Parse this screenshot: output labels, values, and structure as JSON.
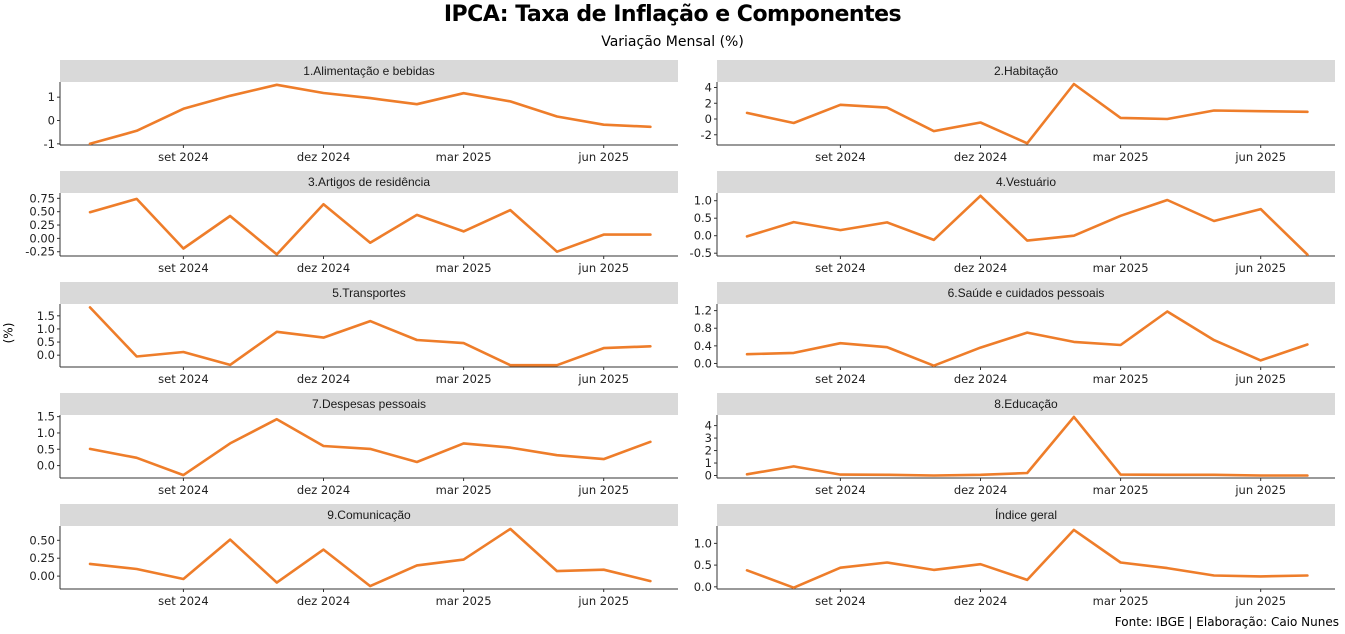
{
  "header": {
    "title": "IPCA: Taxa de Inflação e Componentes",
    "subtitle": "Variação Mensal (%)"
  },
  "ylabel": "(%)",
  "caption": "Fonte: IBGE | Elaboração: Caio Nunes",
  "colors": {
    "line": "#ee7d2a",
    "strip": "#d9d9d9",
    "axis": "#333333"
  },
  "chart_data": {
    "type": "line",
    "x": [
      "jul 2024",
      "ago 2024",
      "set 2024",
      "out 2024",
      "nov 2024",
      "dez 2024",
      "jan 2025",
      "fev 2025",
      "mar 2025",
      "abr 2025",
      "mai 2025",
      "jun 2025",
      "jul 2025"
    ],
    "x_ticks": [
      "set 2024",
      "dez 2024",
      "mar 2025",
      "jun 2025"
    ],
    "panels": [
      {
        "name": "1.Alimentação e bebidas",
        "yticks": [
          "-1",
          "0",
          "1"
        ],
        "ytick_values": [
          -1,
          0,
          1
        ],
        "ylim": [
          -1.05,
          1.65
        ],
        "values": [
          -1.0,
          -0.44,
          0.5,
          1.06,
          1.53,
          1.18,
          0.96,
          0.7,
          1.17,
          0.82,
          0.17,
          -0.18,
          -0.27
        ]
      },
      {
        "name": "2.Habitação",
        "yticks": [
          "-2",
          "0",
          "2",
          "4"
        ],
        "ytick_values": [
          -2,
          0,
          2,
          4
        ],
        "ylim": [
          -3.3,
          4.7
        ],
        "values": [
          0.77,
          -0.51,
          1.8,
          1.45,
          -1.53,
          -0.44,
          -3.08,
          4.44,
          0.14,
          0.0,
          1.08,
          0.99,
          0.91
        ]
      },
      {
        "name": "3.Artigos de residência",
        "yticks": [
          "-0.25",
          "0.00",
          "0.25",
          "0.50",
          "0.75"
        ],
        "ytick_values": [
          -0.25,
          0,
          0.25,
          0.5,
          0.75
        ],
        "ylim": [
          -0.33,
          0.85
        ],
        "values": [
          0.49,
          0.74,
          -0.19,
          0.42,
          -0.3,
          0.64,
          -0.08,
          0.44,
          0.13,
          0.53,
          -0.25,
          0.07,
          0.07
        ]
      },
      {
        "name": "4.Vestuário",
        "yticks": [
          "-0.5",
          "0.0",
          "0.5",
          "1.0"
        ],
        "ytick_values": [
          -0.5,
          0,
          0.5,
          1.0
        ],
        "ylim": [
          -0.58,
          1.22
        ],
        "values": [
          -0.02,
          0.39,
          0.16,
          0.38,
          -0.12,
          1.14,
          -0.14,
          0.0,
          0.57,
          1.02,
          0.42,
          0.76,
          -0.54
        ]
      },
      {
        "name": "5.Transportes",
        "yticks": [
          "0.0",
          "0.5",
          "1.0",
          "1.5"
        ],
        "ytick_values": [
          0,
          0.5,
          1.0,
          1.5
        ],
        "ylim": [
          -0.45,
          1.95
        ],
        "values": [
          1.82,
          -0.05,
          0.12,
          -0.37,
          0.89,
          0.67,
          1.3,
          0.58,
          0.46,
          -0.38,
          -0.38,
          0.27,
          0.34
        ]
      },
      {
        "name": "6.Saúde e cuidados pessoais",
        "yticks": [
          "0.0",
          "0.4",
          "0.8",
          "1.2"
        ],
        "ytick_values": [
          0,
          0.4,
          0.8,
          1.2
        ],
        "ylim": [
          -0.08,
          1.35
        ],
        "values": [
          0.21,
          0.24,
          0.46,
          0.37,
          -0.05,
          0.36,
          0.7,
          0.49,
          0.42,
          1.18,
          0.53,
          0.07,
          0.43
        ]
      },
      {
        "name": "7.Despesas pessoais",
        "yticks": [
          "0.0",
          "0.5",
          "1.0",
          "1.5"
        ],
        "ytick_values": [
          0,
          0.5,
          1.0,
          1.5
        ],
        "ylim": [
          -0.38,
          1.55
        ],
        "values": [
          0.51,
          0.24,
          -0.29,
          0.68,
          1.42,
          0.6,
          0.51,
          0.11,
          0.68,
          0.55,
          0.32,
          0.2,
          0.73
        ]
      },
      {
        "name": "8.Educação",
        "yticks": [
          "0",
          "1",
          "2",
          "3",
          "4"
        ],
        "ytick_values": [
          0,
          1,
          2,
          3,
          4
        ],
        "ylim": [
          -0.2,
          4.85
        ],
        "values": [
          0.1,
          0.73,
          0.07,
          0.06,
          0.0,
          0.06,
          0.2,
          4.7,
          0.07,
          0.06,
          0.06,
          0.0,
          0.0
        ]
      },
      {
        "name": "9.Comunicação",
        "yticks": [
          "0.00",
          "0.25",
          "0.50"
        ],
        "ytick_values": [
          0,
          0.25,
          0.5
        ],
        "ylim": [
          -0.18,
          0.7
        ],
        "values": [
          0.17,
          0.1,
          -0.04,
          0.51,
          -0.09,
          0.37,
          -0.14,
          0.15,
          0.23,
          0.66,
          0.07,
          0.09,
          -0.07
        ]
      },
      {
        "name": "Índice geral",
        "yticks": [
          "0.0",
          "0.5",
          "1.0"
        ],
        "ytick_values": [
          0,
          0.5,
          1.0
        ],
        "ylim": [
          -0.05,
          1.4
        ],
        "values": [
          0.38,
          -0.02,
          0.44,
          0.56,
          0.39,
          0.52,
          0.16,
          1.31,
          0.56,
          0.43,
          0.26,
          0.24,
          0.26
        ]
      }
    ]
  }
}
